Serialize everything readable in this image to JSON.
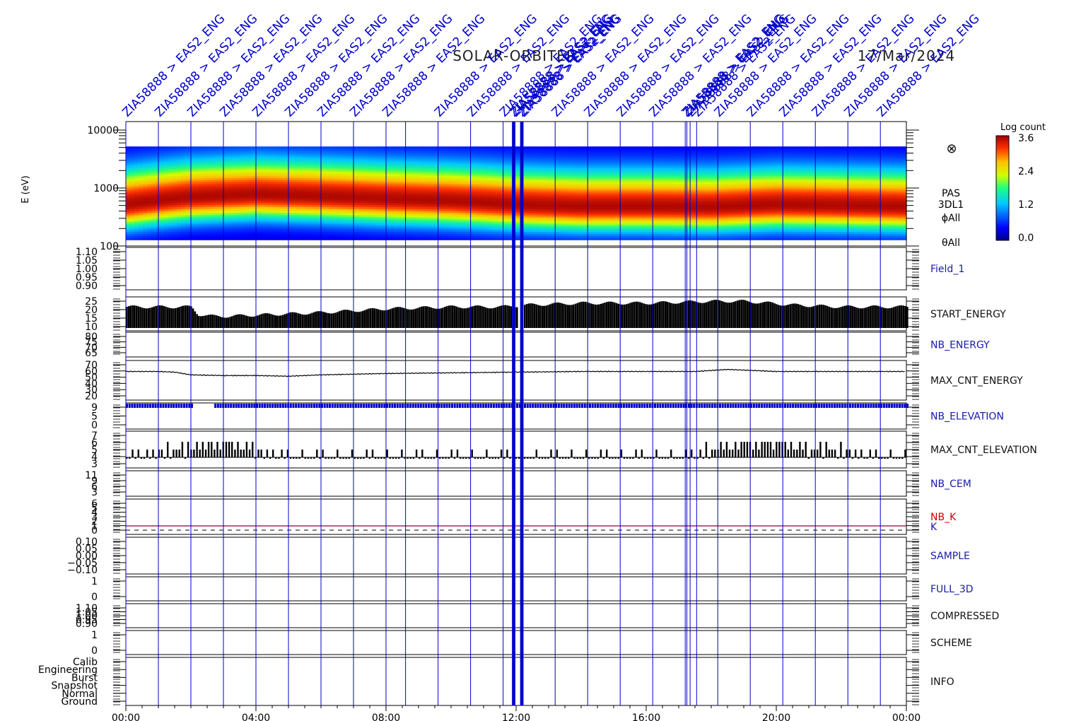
{
  "header": {
    "mission": "SOLAR-ORBITER",
    "date": "17/Mar/2024",
    "marker_label": "ZIA58888 > EAS2_ENG"
  },
  "colors": {
    "marker": "#0000cc",
    "axis": "#000000",
    "label_blue": "#1a1aaa",
    "label_red": "#cc0000",
    "nb_k_line": "#880044"
  },
  "spectrogram": {
    "ylabel": "E (eV)",
    "yticks": [
      "10000",
      "1000",
      "100"
    ],
    "scale": "log",
    "ylim": [
      100,
      14000
    ],
    "side_labels": [
      "PAS",
      "3DL1",
      "ϕAll",
      "θAll"
    ],
    "colorbar": {
      "title": "Log count",
      "ticks": [
        "3.6",
        "2.4",
        "1.2",
        "0.0"
      ],
      "range": [
        0.0,
        3.6
      ]
    }
  },
  "time_axis": {
    "ticks": [
      "00:00",
      "04:00",
      "08:00",
      "12:00",
      "16:00",
      "20:00",
      "00:00"
    ],
    "range_hours": [
      0,
      24
    ]
  },
  "panels": [
    {
      "key": "field1",
      "label": "Field_1",
      "label_color": "blue",
      "ticks": [
        "1.10",
        "1.05",
        "1.00",
        "0.95",
        "0.90"
      ]
    },
    {
      "key": "start_energy",
      "label": "START_ENERGY",
      "label_color": "black",
      "ticks": [
        "25",
        "20",
        "15",
        "10"
      ]
    },
    {
      "key": "nb_energy",
      "label": "NB_ENERGY",
      "label_color": "blue",
      "ticks": [
        "80",
        "75",
        "70",
        "65"
      ]
    },
    {
      "key": "max_cnt_energy",
      "label": "MAX_CNT_ENERGY",
      "label_color": "black",
      "ticks": [
        "70",
        "60",
        "50",
        "40",
        "30",
        "20"
      ]
    },
    {
      "key": "nb_elevation",
      "label": "NB_ELEVATION",
      "label_color": "blue",
      "ticks": [
        "9",
        "5",
        "0"
      ]
    },
    {
      "key": "max_cnt_elevation",
      "label": "MAX_CNT_ELEVATION",
      "label_color": "black",
      "ticks": [
        "7",
        "6",
        "5",
        "4",
        "3"
      ]
    },
    {
      "key": "nb_cem",
      "label": "NB_CEM",
      "label_color": "blue",
      "ticks": [
        "11",
        "9",
        "6",
        "3"
      ]
    },
    {
      "key": "nb_k",
      "label": "NB_K",
      "label2": "K",
      "label_color": "red",
      "ticks": [
        "6",
        "5",
        "4",
        "3",
        "2",
        "1",
        "0"
      ]
    },
    {
      "key": "sample",
      "label": "SAMPLE",
      "label_color": "blue",
      "ticks": [
        "0.10",
        "0.05",
        "0.00",
        "−0.05",
        "−0.10"
      ]
    },
    {
      "key": "full_3d",
      "label": "FULL_3D",
      "label_color": "blue",
      "ticks": [
        "1",
        "0"
      ]
    },
    {
      "key": "compressed",
      "label": "COMPRESSED",
      "label_color": "black",
      "ticks": [
        "1.10",
        "1.05",
        "1.00",
        "0.95",
        "0.90"
      ]
    },
    {
      "key": "scheme",
      "label": "SCHEME",
      "label_color": "black",
      "ticks": [
        "1",
        "0"
      ]
    },
    {
      "key": "info",
      "label": "INFO",
      "label_color": "black",
      "ticks": [
        "Calib",
        "Engineering",
        "Burst",
        "Snapshot",
        "Normal",
        "Ground"
      ]
    }
  ],
  "chart_data": {
    "type": "heatmap",
    "title": "SOLAR-ORBITER 17/Mar/2024",
    "x_unit": "hours UT",
    "marker_times_hours": [
      0,
      1,
      2,
      3,
      4,
      5,
      6,
      7,
      8,
      8.6,
      9.6,
      10.6,
      11.6,
      11.9,
      11.95,
      12.15,
      12.2,
      13.2,
      14.2,
      15.2,
      16.2,
      17.2,
      17.25,
      17.35,
      17.55,
      18.2,
      19.2,
      20.2,
      21.2,
      22.2,
      23.2
    ],
    "series": [
      {
        "name": "START_ENERGY",
        "x": [
          0,
          2,
          2.2,
          2.7,
          3,
          6,
          8,
          10,
          11.5,
          12.3,
          14,
          16,
          18,
          19,
          20.5,
          22,
          24
        ],
        "y": [
          22,
          22,
          18,
          17,
          17,
          19,
          21,
          22,
          22,
          23,
          24,
          24,
          25,
          25,
          23,
          22,
          22
        ]
      },
      {
        "name": "MAX_CNT_ENERGY",
        "x": [
          0,
          1,
          1.5,
          2,
          3,
          4,
          5,
          6,
          8,
          10,
          12,
          14,
          16,
          17.5,
          18.5,
          19.5,
          20,
          22,
          24
        ],
        "y": [
          58,
          58,
          57,
          53,
          52,
          52,
          51,
          53,
          55,
          56,
          57,
          58,
          58,
          58,
          61,
          59,
          58,
          58,
          58
        ]
      },
      {
        "name": "NB_ELEVATION",
        "x": [
          0,
          2,
          2.7,
          24
        ],
        "y": [
          9,
          9,
          9,
          9
        ]
      },
      {
        "name": "MAX_CNT_ELEVATION",
        "x": [
          0,
          1,
          2,
          3,
          4,
          5,
          6,
          7,
          8,
          9,
          10,
          11,
          12,
          13,
          14,
          15,
          16,
          17,
          18,
          19,
          20,
          21,
          22,
          23,
          24
        ],
        "y": [
          4,
          5,
          5,
          6,
          5,
          4,
          4,
          4,
          4,
          4,
          4,
          4,
          4,
          4,
          4,
          4,
          4,
          4,
          5,
          6,
          6,
          5,
          5,
          4,
          4
        ]
      }
    ],
    "spectrogram_peak_energy_ev": [
      {
        "t": 0,
        "e": 520
      },
      {
        "t": 2,
        "e": 700
      },
      {
        "t": 4,
        "e": 780
      },
      {
        "t": 6,
        "e": 720
      },
      {
        "t": 8,
        "e": 650
      },
      {
        "t": 10,
        "e": 600
      },
      {
        "t": 12,
        "e": 520
      },
      {
        "t": 14,
        "e": 480
      },
      {
        "t": 16,
        "e": 480
      },
      {
        "t": 18,
        "e": 470
      },
      {
        "t": 20,
        "e": 520
      },
      {
        "t": 22,
        "e": 500
      },
      {
        "t": 24,
        "e": 480
      }
    ],
    "ylim_spectrogram": [
      100,
      14000
    ]
  }
}
